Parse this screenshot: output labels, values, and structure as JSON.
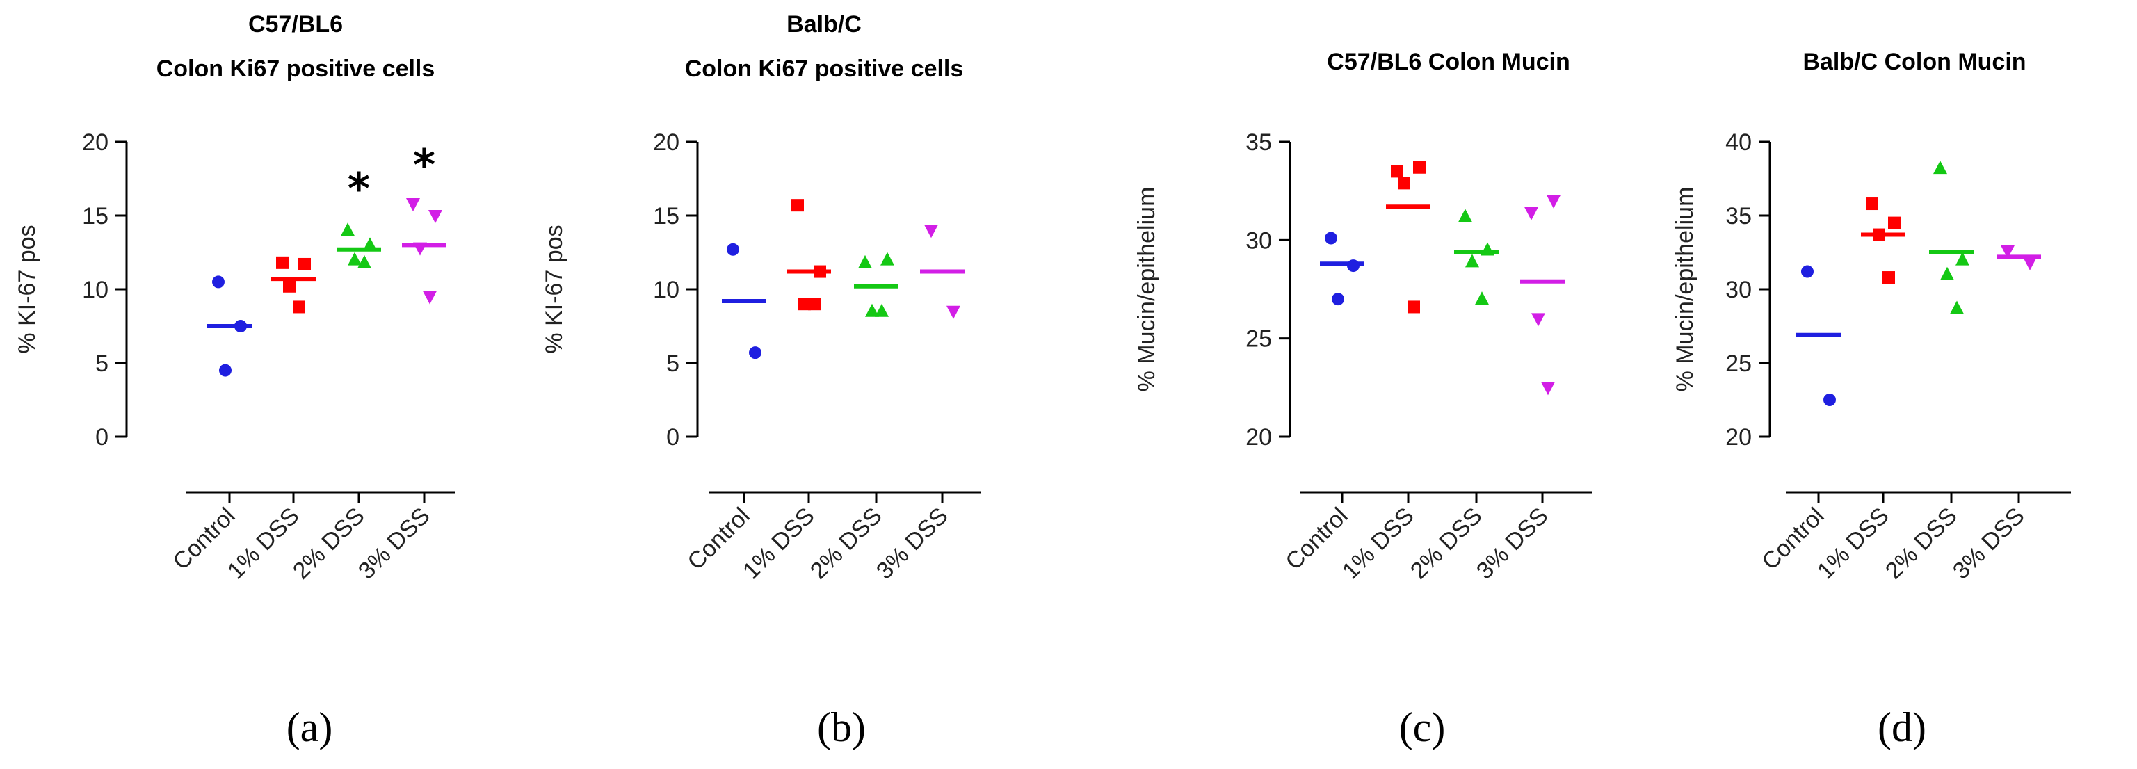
{
  "colors": {
    "control": "#1f1fe0",
    "dss1": "#ff0000",
    "dss2": "#14c814",
    "dss3": "#d21ee6",
    "axis": "#000000"
  },
  "chart_data": [
    {
      "type": "scatter",
      "panel_label": "(a)",
      "title_lines": [
        "C57/BL6",
        "Colon Ki67 positive cells"
      ],
      "ylabel": "% KI-67 pos",
      "ylim": [
        0,
        20
      ],
      "yticks": [
        "0",
        "5",
        "10",
        "15",
        "20"
      ],
      "categories": [
        "Control",
        "1% DSS",
        "2% DSS",
        "3% DSS"
      ],
      "series": [
        {
          "name": "Control",
          "marker": "circle",
          "points": [
            10.5,
            7.5,
            4.5
          ],
          "mean": 7.5
        },
        {
          "name": "1% DSS",
          "marker": "square",
          "points": [
            11.8,
            11.7,
            10.2,
            8.8
          ],
          "mean": 10.7
        },
        {
          "name": "2% DSS",
          "marker": "triangle-up",
          "points": [
            14.0,
            13.0,
            12.0,
            11.8
          ],
          "mean": 12.7
        },
        {
          "name": "3% DSS",
          "marker": "triangle-down",
          "points": [
            15.8,
            15.0,
            12.8,
            9.5
          ],
          "mean": 13.0
        }
      ],
      "annotations": [
        {
          "category": "2% DSS",
          "text": "*",
          "y": 17.7
        },
        {
          "category": "3% DSS",
          "text": "*",
          "y": 19.3
        }
      ]
    },
    {
      "type": "scatter",
      "panel_label": "(b)",
      "title_lines": [
        "Balb/C",
        "Colon Ki67 positive cells"
      ],
      "ylabel": "% KI-67 pos",
      "ylim": [
        0,
        20
      ],
      "yticks": [
        "0",
        "5",
        "10",
        "15",
        "20"
      ],
      "categories": [
        "Control",
        "1% DSS",
        "2% DSS",
        "3% DSS"
      ],
      "series": [
        {
          "name": "Control",
          "marker": "circle",
          "points": [
            12.7,
            5.7
          ],
          "mean": 9.2
        },
        {
          "name": "1% DSS",
          "marker": "square",
          "points": [
            15.7,
            11.2,
            9.0,
            9.0
          ],
          "mean": 11.2
        },
        {
          "name": "2% DSS",
          "marker": "triangle-up",
          "points": [
            11.8,
            12.0,
            8.5,
            8.5
          ],
          "mean": 10.2
        },
        {
          "name": "3% DSS",
          "marker": "triangle-down",
          "points": [
            14.0,
            8.5
          ],
          "mean": 11.2
        }
      ],
      "annotations": []
    },
    {
      "type": "scatter",
      "panel_label": "(c)",
      "title_lines": [
        "C57/BL6 Colon Mucin"
      ],
      "ylabel": "% Mucin/epithelium",
      "ylim": [
        20,
        35
      ],
      "yticks": [
        "20",
        "25",
        "30",
        "35"
      ],
      "categories": [
        "Control",
        "1% DSS",
        "2% DSS",
        "3% DSS"
      ],
      "series": [
        {
          "name": "Control",
          "marker": "circle",
          "points": [
            30.1,
            28.7,
            27.0
          ],
          "mean": 28.8
        },
        {
          "name": "1% DSS",
          "marker": "square",
          "points": [
            33.5,
            33.7,
            32.9,
            26.6
          ],
          "mean": 31.7
        },
        {
          "name": "2% DSS",
          "marker": "triangle-up",
          "points": [
            31.2,
            29.5,
            28.9,
            27.0
          ],
          "mean": 29.4
        },
        {
          "name": "3% DSS",
          "marker": "triangle-down",
          "points": [
            31.4,
            32.0,
            26.0,
            22.5
          ],
          "mean": 27.9
        }
      ],
      "annotations": []
    },
    {
      "type": "scatter",
      "panel_label": "(d)",
      "title_lines": [
        "Balb/C Colon Mucin"
      ],
      "ylabel": "% Mucin/epithelium",
      "ylim": [
        20,
        40
      ],
      "yticks": [
        "20",
        "25",
        "30",
        "35",
        "40"
      ],
      "categories": [
        "Control",
        "1% DSS",
        "2% DSS",
        "3% DSS"
      ],
      "series": [
        {
          "name": "Control",
          "marker": "circle",
          "points": [
            31.2,
            22.5
          ],
          "mean": 26.9
        },
        {
          "name": "1% DSS",
          "marker": "square",
          "points": [
            35.8,
            34.5,
            33.7,
            30.8
          ],
          "mean": 33.7
        },
        {
          "name": "2% DSS",
          "marker": "triangle-up",
          "points": [
            38.2,
            32.0,
            31.0,
            28.7
          ],
          "mean": 32.5
        },
        {
          "name": "3% DSS",
          "marker": "triangle-down",
          "points": [
            32.6,
            31.8
          ],
          "mean": 32.2
        }
      ],
      "annotations": []
    }
  ]
}
